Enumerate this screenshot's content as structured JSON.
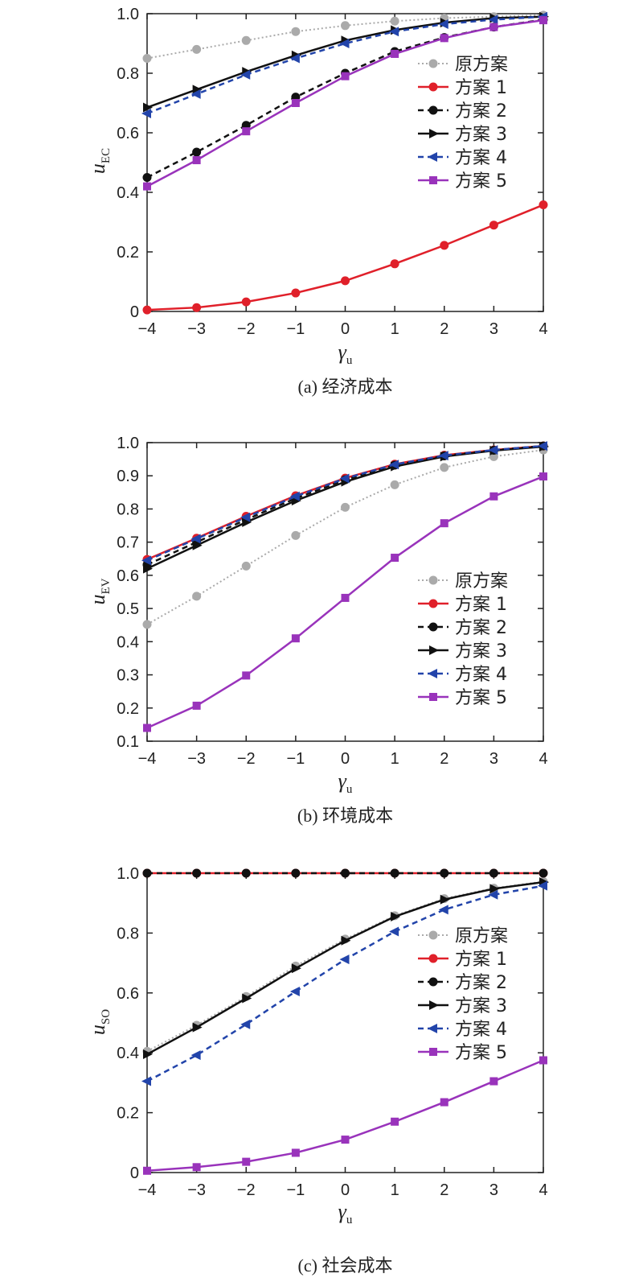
{
  "chart_data": [
    {
      "type": "line",
      "caption": "(a) 经济成本",
      "xlabel": "γ",
      "xlabel_sub": "u",
      "ylabel": "u",
      "ylabel_sub": "EC",
      "x": [
        -4,
        -3,
        -2,
        -1,
        0,
        1,
        2,
        3,
        4
      ],
      "xlim": [
        -4,
        4
      ],
      "ylim": [
        0,
        1.0
      ],
      "yticks": [
        0,
        0.2,
        0.4,
        0.6,
        0.8,
        1.0
      ],
      "ytick_labels": [
        "0",
        "0.2",
        "0.4",
        "0.6",
        "0.8",
        "1.0"
      ],
      "grid": false,
      "legend_position": "right",
      "series": [
        {
          "name": "原方案",
          "color": "#aaaaaa",
          "style": "dotted",
          "marker": "circle",
          "values": [
            0.85,
            0.88,
            0.91,
            0.94,
            0.96,
            0.975,
            0.985,
            0.99,
            0.995
          ]
        },
        {
          "name": "方案 1",
          "color": "#e0202a",
          "style": "solid",
          "marker": "circle",
          "values": [
            0.005,
            0.013,
            0.032,
            0.062,
            0.103,
            0.16,
            0.222,
            0.29,
            0.358
          ]
        },
        {
          "name": "方案 2",
          "color": "#111111",
          "style": "dashed",
          "marker": "circle",
          "values": [
            0.45,
            0.535,
            0.625,
            0.72,
            0.8,
            0.873,
            0.92,
            0.955,
            0.98
          ]
        },
        {
          "name": "方案 3",
          "color": "#111111",
          "style": "solid",
          "marker": "triangle-right",
          "values": [
            0.685,
            0.745,
            0.805,
            0.86,
            0.91,
            0.945,
            0.97,
            0.985,
            0.99
          ]
        },
        {
          "name": "方案 4",
          "color": "#2244aa",
          "style": "dashed",
          "marker": "triangle-left",
          "values": [
            0.665,
            0.73,
            0.795,
            0.85,
            0.9,
            0.94,
            0.965,
            0.98,
            0.99
          ]
        },
        {
          "name": "方案 5",
          "color": "#9933bb",
          "style": "solid",
          "marker": "square",
          "values": [
            0.42,
            0.508,
            0.605,
            0.7,
            0.79,
            0.865,
            0.918,
            0.955,
            0.978
          ]
        }
      ]
    },
    {
      "type": "line",
      "caption": "(b) 环境成本",
      "xlabel": "γ",
      "xlabel_sub": "u",
      "ylabel": "u",
      "ylabel_sub": "EV",
      "x": [
        -4,
        -3,
        -2,
        -1,
        0,
        1,
        2,
        3,
        4
      ],
      "xlim": [
        -4,
        4
      ],
      "ylim": [
        0.1,
        1.0
      ],
      "yticks": [
        0.1,
        0.2,
        0.3,
        0.4,
        0.5,
        0.6,
        0.7,
        0.8,
        0.9,
        1.0
      ],
      "ytick_labels": [
        "0.1",
        "0.2",
        "0.3",
        "0.4",
        "0.5",
        "0.6",
        "0.7",
        "0.8",
        "0.9",
        "1.0"
      ],
      "grid": false,
      "legend_position": "right",
      "series": [
        {
          "name": "原方案",
          "color": "#aaaaaa",
          "style": "dotted",
          "marker": "circle",
          "values": [
            0.452,
            0.537,
            0.628,
            0.72,
            0.805,
            0.873,
            0.925,
            0.958,
            0.978
          ]
        },
        {
          "name": "方案 1",
          "color": "#e0202a",
          "style": "solid",
          "marker": "circle",
          "values": [
            0.648,
            0.712,
            0.778,
            0.84,
            0.893,
            0.935,
            0.962,
            0.978,
            0.99
          ]
        },
        {
          "name": "方案 2",
          "color": "#111111",
          "style": "dashed",
          "marker": "circle",
          "values": [
            0.632,
            0.7,
            0.768,
            0.832,
            0.888,
            0.932,
            0.96,
            0.977,
            0.99
          ]
        },
        {
          "name": "方案 3",
          "color": "#111111",
          "style": "solid",
          "marker": "triangle-right",
          "values": [
            0.62,
            0.69,
            0.76,
            0.825,
            0.882,
            0.928,
            0.958,
            0.976,
            0.988
          ]
        },
        {
          "name": "方案 4",
          "color": "#2244aa",
          "style": "dashed",
          "marker": "triangle-left",
          "values": [
            0.645,
            0.71,
            0.775,
            0.838,
            0.892,
            0.934,
            0.961,
            0.978,
            0.99
          ]
        },
        {
          "name": "方案 5",
          "color": "#9933bb",
          "style": "solid",
          "marker": "square",
          "values": [
            0.14,
            0.207,
            0.298,
            0.41,
            0.532,
            0.653,
            0.757,
            0.838,
            0.898
          ]
        }
      ]
    },
    {
      "type": "line",
      "caption": "(c) 社会成本",
      "xlabel": "γ",
      "xlabel_sub": "u",
      "ylabel": "u",
      "ylabel_sub": "SO",
      "x": [
        -4,
        -3,
        -2,
        -1,
        0,
        1,
        2,
        3,
        4
      ],
      "xlim": [
        -4,
        4
      ],
      "ylim": [
        0,
        1.0
      ],
      "yticks": [
        0,
        0.2,
        0.4,
        0.6,
        0.8,
        1.0
      ],
      "ytick_labels": [
        "0",
        "0.2",
        "0.4",
        "0.6",
        "0.8",
        "1.0"
      ],
      "grid": false,
      "legend_position": "right",
      "series": [
        {
          "name": "原方案",
          "color": "#aaaaaa",
          "style": "dotted",
          "marker": "circle",
          "values": [
            0.405,
            0.492,
            0.588,
            0.69,
            0.78,
            0.858,
            0.915,
            0.95,
            0.972
          ]
        },
        {
          "name": "方案 1",
          "color": "#e0202a",
          "style": "solid",
          "marker": "circle",
          "values": [
            1.0,
            1.0,
            1.0,
            1.0,
            1.0,
            1.0,
            1.0,
            1.0,
            1.0
          ]
        },
        {
          "name": "方案 2",
          "color": "#111111",
          "style": "dashed",
          "marker": "circle",
          "values": [
            1.0,
            1.0,
            1.0,
            1.0,
            1.0,
            1.0,
            1.0,
            1.0,
            1.0
          ]
        },
        {
          "name": "方案 3",
          "color": "#111111",
          "style": "solid",
          "marker": "triangle-right",
          "values": [
            0.395,
            0.485,
            0.582,
            0.682,
            0.775,
            0.855,
            0.912,
            0.948,
            0.97
          ]
        },
        {
          "name": "方案 4",
          "color": "#2244aa",
          "style": "dashed",
          "marker": "triangle-left",
          "values": [
            0.305,
            0.392,
            0.495,
            0.605,
            0.712,
            0.805,
            0.878,
            0.928,
            0.958
          ]
        },
        {
          "name": "方案 5",
          "color": "#9933bb",
          "style": "solid",
          "marker": "square",
          "values": [
            0.006,
            0.018,
            0.036,
            0.066,
            0.11,
            0.17,
            0.235,
            0.305,
            0.375
          ]
        }
      ]
    }
  ]
}
